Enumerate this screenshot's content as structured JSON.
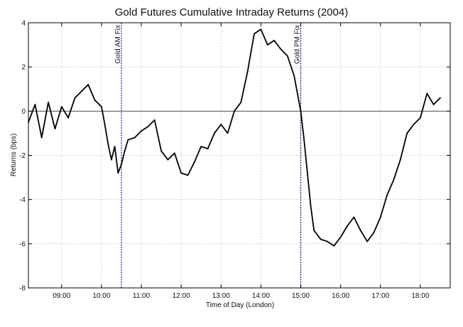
{
  "chart_data": {
    "type": "line",
    "title": "Gold Futures Cumulative Intraday Returns (2004)",
    "xlabel": "Time of Day (London)",
    "ylabel": "Returns (bps)",
    "xlim": [
      "08:10",
      "18:45"
    ],
    "ylim": [
      -8,
      4
    ],
    "x_ticks": [
      "09:00",
      "10:00",
      "11:00",
      "12:00",
      "13:00",
      "14:00",
      "15:00",
      "16:00",
      "17:00",
      "18:00"
    ],
    "y_ticks": [
      "-8",
      "-6",
      "-4",
      "-2",
      "0",
      "2",
      "4"
    ],
    "grid": true,
    "zero_line": 0,
    "annotations": [
      {
        "label": "Gold AM Fix",
        "x": "10:30"
      },
      {
        "label": "Gold PM Fix",
        "x": "15:00"
      }
    ],
    "series": [
      {
        "color": "#000000",
        "x": [
          "08:10",
          "08:20",
          "08:30",
          "08:40",
          "08:50",
          "09:00",
          "09:10",
          "09:20",
          "09:30",
          "09:40",
          "09:50",
          "10:00",
          "10:05",
          "10:10",
          "10:15",
          "10:20",
          "10:25",
          "10:30",
          "10:35",
          "10:40",
          "10:50",
          "11:00",
          "11:10",
          "11:20",
          "11:30",
          "11:40",
          "11:50",
          "12:00",
          "12:10",
          "12:20",
          "12:30",
          "12:40",
          "12:50",
          "13:00",
          "13:10",
          "13:20",
          "13:30",
          "13:40",
          "13:50",
          "14:00",
          "14:10",
          "14:20",
          "14:30",
          "14:40",
          "14:50",
          "15:00",
          "15:05",
          "15:10",
          "15:15",
          "15:20",
          "15:30",
          "15:40",
          "15:50",
          "16:00",
          "16:10",
          "16:20",
          "16:30",
          "16:40",
          "16:50",
          "17:00",
          "17:10",
          "17:20",
          "17:30",
          "17:40",
          "17:50",
          "18:00",
          "18:10",
          "18:20",
          "18:30"
        ],
        "values": [
          -0.5,
          0.3,
          -1.2,
          0.4,
          -0.8,
          0.2,
          -0.3,
          0.6,
          0.9,
          1.2,
          0.5,
          0.2,
          -0.6,
          -1.5,
          -2.2,
          -1.6,
          -2.8,
          -2.4,
          -1.8,
          -1.3,
          -1.2,
          -0.9,
          -0.7,
          -0.4,
          -1.8,
          -2.2,
          -1.9,
          -2.8,
          -2.9,
          -2.3,
          -1.6,
          -1.7,
          -1.0,
          -0.6,
          -1.0,
          0.0,
          0.4,
          1.8,
          3.5,
          3.7,
          3.0,
          3.2,
          2.8,
          2.5,
          1.6,
          0.0,
          -1.3,
          -2.8,
          -4.3,
          -5.4,
          -5.8,
          -5.9,
          -6.1,
          -5.7,
          -5.2,
          -4.8,
          -5.4,
          -5.9,
          -5.5,
          -4.8,
          -3.8,
          -3.1,
          -2.2,
          -1.0,
          -0.6,
          -0.3,
          0.8,
          0.3,
          0.6
        ]
      }
    ]
  }
}
